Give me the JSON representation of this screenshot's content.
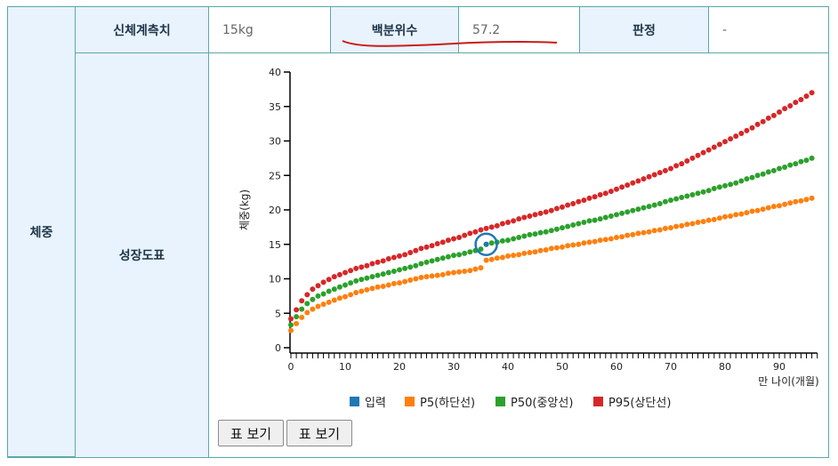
{
  "table": {
    "row_label": "체중",
    "measurement_label": "신체계측치",
    "measurement_value": "15kg",
    "percentile_label": "백분위수",
    "percentile_value": "57.2",
    "judgement_label": "판정",
    "judgement_value": "-",
    "chart_label": "성장도표"
  },
  "buttons": {
    "table_view_1": "표 보기",
    "table_view_2": "표 보기"
  },
  "colors": {
    "input": "#1f77b4",
    "p5": "#ff7f0e",
    "p50": "#2ca02c",
    "p95": "#d62728",
    "border": "#5ba8a8",
    "header_bg": "#e8f3fd",
    "annotation": "#cc1a1a"
  },
  "chart_data": {
    "type": "scatter",
    "title": "",
    "xlabel": "만 나이(개월)",
    "ylabel": "체중(kg)",
    "xlim": [
      0,
      97
    ],
    "ylim": [
      0,
      40
    ],
    "x_ticks": [
      0,
      10,
      20,
      30,
      40,
      50,
      60,
      70,
      80,
      90
    ],
    "y_ticks": [
      0,
      5,
      10,
      15,
      20,
      25,
      30,
      35,
      40
    ],
    "grid": false,
    "legend_position": "bottom",
    "legend": [
      "입력",
      "P5(하단선)",
      "P50(중앙선)",
      "P95(상단선)"
    ],
    "input_point": {
      "x": 36,
      "y": 15.0
    },
    "x": [
      0,
      1,
      2,
      3,
      4,
      5,
      6,
      7,
      8,
      9,
      10,
      11,
      12,
      13,
      14,
      15,
      16,
      17,
      18,
      19,
      20,
      21,
      22,
      23,
      24,
      25,
      26,
      27,
      28,
      29,
      30,
      31,
      32,
      33,
      34,
      35,
      36,
      37,
      38,
      39,
      40,
      41,
      42,
      43,
      44,
      45,
      46,
      47,
      48,
      49,
      50,
      51,
      52,
      53,
      54,
      55,
      56,
      57,
      58,
      59,
      60,
      61,
      62,
      63,
      64,
      65,
      66,
      67,
      68,
      69,
      70,
      71,
      72,
      73,
      74,
      75,
      76,
      77,
      78,
      79,
      80,
      81,
      82,
      83,
      84,
      85,
      86,
      87,
      88,
      89,
      90,
      91,
      92,
      93,
      94,
      95,
      96
    ],
    "series": [
      {
        "name": "P5(하단선)",
        "color": "#ff7f0e",
        "values": [
          2.5,
          3.5,
          4.4,
          5.1,
          5.6,
          6.0,
          6.3,
          6.6,
          6.9,
          7.2,
          7.4,
          7.7,
          8.0,
          8.2,
          8.4,
          8.6,
          8.8,
          8.9,
          9.1,
          9.3,
          9.4,
          9.6,
          9.8,
          10.0,
          10.2,
          10.3,
          10.4,
          10.5,
          10.6,
          10.8,
          10.9,
          11.0,
          11.1,
          11.2,
          11.4,
          11.6,
          12.7,
          12.8,
          13.0,
          13.1,
          13.3,
          13.4,
          13.5,
          13.7,
          13.8,
          13.9,
          14.1,
          14.2,
          14.4,
          14.5,
          14.6,
          14.8,
          14.9,
          15.0,
          15.2,
          15.3,
          15.4,
          15.6,
          15.7,
          15.8,
          16.0,
          16.1,
          16.3,
          16.4,
          16.6,
          16.7,
          16.8,
          17.0,
          17.1,
          17.3,
          17.4,
          17.6,
          17.7,
          17.9,
          18.0,
          18.2,
          18.3,
          18.5,
          18.6,
          18.8,
          19.0,
          19.1,
          19.3,
          19.4,
          19.6,
          19.8,
          19.9,
          20.1,
          20.3,
          20.5,
          20.6,
          20.8,
          21.0,
          21.2,
          21.3,
          21.5,
          21.7
        ]
      },
      {
        "name": "P50(중앙선)",
        "color": "#2ca02c",
        "values": [
          3.3,
          4.5,
          5.6,
          6.4,
          7.0,
          7.5,
          7.8,
          8.2,
          8.5,
          8.8,
          9.1,
          9.4,
          9.7,
          9.9,
          10.1,
          10.3,
          10.5,
          10.7,
          10.9,
          11.1,
          11.3,
          11.5,
          11.7,
          11.9,
          12.2,
          12.4,
          12.6,
          12.8,
          13.0,
          13.2,
          13.4,
          13.5,
          13.7,
          13.9,
          14.1,
          14.3,
          15.0,
          15.2,
          15.3,
          15.5,
          15.6,
          15.8,
          16.0,
          16.2,
          16.4,
          16.5,
          16.7,
          16.8,
          17.0,
          17.2,
          17.4,
          17.6,
          17.8,
          18.0,
          18.2,
          18.4,
          18.5,
          18.7,
          18.9,
          19.1,
          19.3,
          19.5,
          19.7,
          19.9,
          20.1,
          20.3,
          20.5,
          20.7,
          20.9,
          21.2,
          21.4,
          21.6,
          21.8,
          22.0,
          22.2,
          22.4,
          22.6,
          22.8,
          23.1,
          23.3,
          23.5,
          23.7,
          23.9,
          24.2,
          24.5,
          24.7,
          25.0,
          25.2,
          25.5,
          25.7,
          26.0,
          26.2,
          26.5,
          26.7,
          27.0,
          27.2,
          27.5
        ]
      },
      {
        "name": "P95(상단선)",
        "color": "#d62728",
        "values": [
          4.2,
          5.5,
          6.8,
          7.7,
          8.5,
          9.0,
          9.5,
          9.9,
          10.3,
          10.6,
          10.9,
          11.2,
          11.5,
          11.7,
          11.9,
          12.2,
          12.4,
          12.6,
          12.9,
          13.1,
          13.3,
          13.5,
          13.8,
          14.1,
          14.4,
          14.6,
          14.8,
          15.1,
          15.3,
          15.6,
          15.8,
          16.0,
          16.3,
          16.6,
          16.8,
          17.1,
          17.3,
          17.5,
          17.7,
          18.0,
          18.2,
          18.4,
          18.7,
          18.9,
          19.1,
          19.3,
          19.5,
          19.7,
          19.9,
          20.2,
          20.4,
          20.7,
          20.9,
          21.2,
          21.4,
          21.7,
          21.9,
          22.2,
          22.4,
          22.7,
          23.0,
          23.3,
          23.6,
          23.9,
          24.2,
          24.5,
          24.8,
          25.1,
          25.4,
          25.7,
          26.0,
          26.4,
          26.7,
          27.1,
          27.5,
          27.9,
          28.3,
          28.7,
          29.1,
          29.5,
          29.9,
          30.3,
          30.7,
          31.1,
          31.5,
          31.9,
          32.4,
          32.8,
          33.3,
          33.7,
          34.2,
          34.7,
          35.1,
          35.6,
          36.0,
          36.5,
          37.0
        ]
      }
    ]
  }
}
